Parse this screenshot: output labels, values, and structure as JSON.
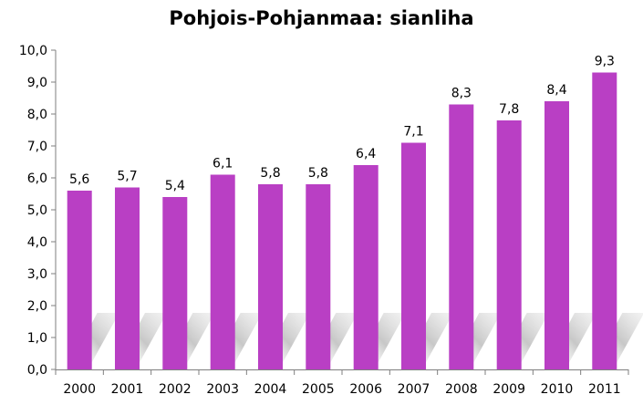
{
  "chart_data": {
    "type": "bar",
    "title": "Pohjois-Pohjanmaa: sianliha",
    "xlabel": "",
    "ylabel": "",
    "categories": [
      "2000",
      "2001",
      "2002",
      "2003",
      "2004",
      "2005",
      "2006",
      "2007",
      "2008",
      "2009",
      "2010",
      "2011"
    ],
    "values": [
      5.6,
      5.7,
      5.4,
      6.1,
      5.8,
      5.8,
      6.4,
      7.1,
      8.3,
      7.8,
      8.4,
      9.3
    ],
    "data_labels": [
      "5,6",
      "5,7",
      "5,4",
      "6,1",
      "5,8",
      "5,8",
      "6,4",
      "7,1",
      "8,3",
      "7,8",
      "8,4",
      "9,3"
    ],
    "ylim": [
      0,
      10
    ],
    "yticks": [
      "0,0",
      "1,0",
      "2,0",
      "3,0",
      "4,0",
      "5,0",
      "6,0",
      "7,0",
      "8,0",
      "9,0",
      "10,0"
    ],
    "grid": false,
    "legend": "none",
    "colors": {
      "bar": "#b93fc4",
      "axis": "#7f7f7f"
    }
  }
}
